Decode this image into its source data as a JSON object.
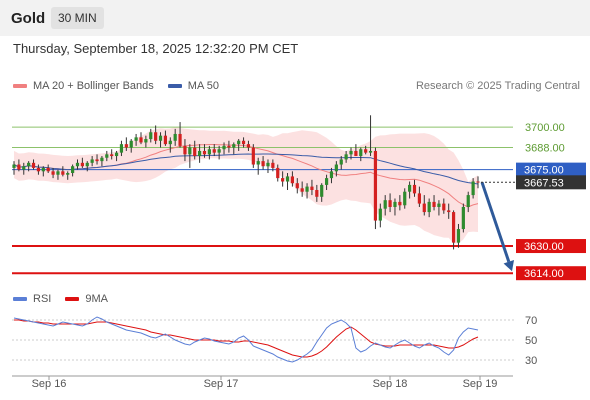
{
  "header": {
    "instrument": "Gold",
    "timeframe": "30 MIN",
    "datetime": "Thursday, September 18, 2025 12:32:20 PM CET"
  },
  "legend": {
    "items": [
      {
        "label": "MA 20 + Bollinger Bands",
        "color": "#f08080"
      },
      {
        "label": "MA 50",
        "color": "#3a5ca8"
      }
    ],
    "credit": "Research © 2025 Trading Central"
  },
  "rsi_legend": {
    "items": [
      {
        "label": "RSI",
        "color": "#5b7fd6"
      },
      {
        "label": "9MA",
        "color": "#dd1111"
      }
    ]
  },
  "chart_data": {
    "type": "candlestick",
    "price_range": [
      3610,
      3716
    ],
    "levels": [
      {
        "label": "3700.00",
        "value": 3700.0,
        "role": "resistance",
        "color": "#8cc26a",
        "text_color": "#5e9c33"
      },
      {
        "label": "3688.00",
        "value": 3688.0,
        "role": "resistance",
        "color": "#8cc26a",
        "text_color": "#5e9c33"
      },
      {
        "label": "3675.00",
        "value": 3675.0,
        "role": "pivot",
        "color": "#2f5fc4",
        "text_color": "#ffffff"
      },
      {
        "label": "3630.00",
        "value": 3630.0,
        "role": "support",
        "color": "#dd1111",
        "text_color": "#ffffff"
      },
      {
        "label": "3614.00",
        "value": 3614.0,
        "role": "support",
        "color": "#dd1111",
        "text_color": "#ffffff"
      }
    ],
    "last_price": {
      "label": "3667.53",
      "value": 3667.53
    },
    "forecast_arrow": {
      "from": 3667.53,
      "to": 3614.0
    },
    "x_labels": [
      "Sep 16",
      "Sep 17",
      "Sep 18",
      "Sep 19"
    ],
    "candles": [
      [
        3676,
        3680,
        3672,
        3678
      ],
      [
        3678,
        3681,
        3674,
        3675
      ],
      [
        3675,
        3679,
        3672,
        3677
      ],
      [
        3677,
        3680,
        3674,
        3679
      ],
      [
        3679,
        3681,
        3675,
        3676
      ],
      [
        3676,
        3678,
        3672,
        3674
      ],
      [
        3674,
        3677,
        3671,
        3676
      ],
      [
        3676,
        3678,
        3673,
        3674
      ],
      [
        3674,
        3676,
        3670,
        3672
      ],
      [
        3672,
        3675,
        3669,
        3674
      ],
      [
        3674,
        3677,
        3671,
        3672
      ],
      [
        3672,
        3674,
        3669,
        3673
      ],
      [
        3673,
        3678,
        3671,
        3677
      ],
      [
        3677,
        3681,
        3675,
        3679
      ],
      [
        3679,
        3682,
        3676,
        3677
      ],
      [
        3677,
        3680,
        3674,
        3679
      ],
      [
        3679,
        3683,
        3677,
        3681
      ],
      [
        3681,
        3684,
        3678,
        3680
      ],
      [
        3680,
        3683,
        3677,
        3682
      ],
      [
        3682,
        3686,
        3680,
        3684
      ],
      [
        3684,
        3687,
        3681,
        3683
      ],
      [
        3683,
        3686,
        3680,
        3685
      ],
      [
        3685,
        3692,
        3683,
        3690
      ],
      [
        3690,
        3694,
        3686,
        3688
      ],
      [
        3688,
        3693,
        3685,
        3692
      ],
      [
        3692,
        3696,
        3689,
        3694
      ],
      [
        3694,
        3697,
        3690,
        3691
      ],
      [
        3691,
        3695,
        3688,
        3693
      ],
      [
        3693,
        3699,
        3691,
        3697
      ],
      [
        3697,
        3701,
        3690,
        3692
      ],
      [
        3692,
        3697,
        3688,
        3695
      ],
      [
        3695,
        3698,
        3689,
        3690
      ],
      [
        3690,
        3694,
        3685,
        3692
      ],
      [
        3692,
        3699,
        3689,
        3696
      ],
      [
        3696,
        3703,
        3688,
        3689
      ],
      [
        3689,
        3693,
        3680,
        3684
      ],
      [
        3684,
        3690,
        3676,
        3688
      ],
      [
        3688,
        3692,
        3681,
        3683
      ],
      [
        3683,
        3690,
        3679,
        3686
      ],
      [
        3686,
        3690,
        3682,
        3684
      ],
      [
        3684,
        3689,
        3681,
        3687
      ],
      [
        3687,
        3690,
        3683,
        3685
      ],
      [
        3685,
        3689,
        3681,
        3687
      ],
      [
        3687,
        3691,
        3684,
        3689
      ],
      [
        3689,
        3692,
        3685,
        3688
      ],
      [
        3688,
        3691,
        3684,
        3690
      ],
      [
        3690,
        3693,
        3686,
        3692
      ],
      [
        3692,
        3694,
        3688,
        3690
      ],
      [
        3690,
        3692,
        3686,
        3688
      ],
      [
        3688,
        3690,
        3676,
        3678
      ],
      [
        3678,
        3682,
        3672,
        3680
      ],
      [
        3680,
        3683,
        3675,
        3677
      ],
      [
        3677,
        3681,
        3673,
        3679
      ],
      [
        3679,
        3681,
        3674,
        3676
      ],
      [
        3676,
        3678,
        3668,
        3670
      ],
      [
        3670,
        3674,
        3665,
        3668
      ],
      [
        3668,
        3673,
        3663,
        3671
      ],
      [
        3671,
        3674,
        3665,
        3667
      ],
      [
        3667,
        3670,
        3661,
        3664
      ],
      [
        3664,
        3668,
        3659,
        3662
      ],
      [
        3662,
        3667,
        3658,
        3665
      ],
      [
        3665,
        3669,
        3660,
        3663
      ],
      [
        3663,
        3666,
        3656,
        3659
      ],
      [
        3659,
        3667,
        3656,
        3666
      ],
      [
        3666,
        3672,
        3663,
        3670
      ],
      [
        3670,
        3676,
        3667,
        3674
      ],
      [
        3674,
        3680,
        3671,
        3678
      ],
      [
        3678,
        3683,
        3675,
        3681
      ],
      [
        3681,
        3686,
        3679,
        3684
      ],
      [
        3684,
        3688,
        3681,
        3686
      ],
      [
        3686,
        3690,
        3683,
        3683
      ],
      [
        3683,
        3688,
        3680,
        3687
      ],
      [
        3687,
        3689,
        3684,
        3685
      ],
      [
        3685,
        3707,
        3683,
        3686
      ],
      [
        3686,
        3688,
        3640,
        3645
      ],
      [
        3645,
        3655,
        3641,
        3652
      ],
      [
        3652,
        3660,
        3648,
        3657
      ],
      [
        3657,
        3661,
        3650,
        3653
      ],
      [
        3653,
        3658,
        3648,
        3656
      ],
      [
        3656,
        3660,
        3651,
        3654
      ],
      [
        3654,
        3664,
        3652,
        3662
      ],
      [
        3662,
        3668,
        3658,
        3666
      ],
      [
        3666,
        3669,
        3659,
        3661
      ],
      [
        3661,
        3665,
        3653,
        3655
      ],
      [
        3655,
        3660,
        3648,
        3650
      ],
      [
        3650,
        3658,
        3647,
        3656
      ],
      [
        3656,
        3660,
        3651,
        3653
      ],
      [
        3653,
        3657,
        3648,
        3655
      ],
      [
        3655,
        3658,
        3649,
        3651
      ],
      [
        3651,
        3655,
        3646,
        3650
      ],
      [
        3650,
        3651,
        3628,
        3632
      ],
      [
        3632,
        3643,
        3629,
        3640
      ],
      [
        3640,
        3655,
        3638,
        3653
      ],
      [
        3653,
        3662,
        3650,
        3660
      ],
      [
        3660,
        3670,
        3658,
        3668
      ],
      [
        3668,
        3671,
        3664,
        3667.53
      ]
    ],
    "rsi": {
      "range": [
        20,
        80
      ],
      "ticks": [
        30,
        50,
        70
      ],
      "rsi_values": [
        72,
        71,
        70,
        69,
        68,
        67,
        66,
        65,
        64,
        66,
        68,
        67,
        66,
        65,
        64,
        66,
        70,
        73,
        71,
        68,
        66,
        64,
        62,
        60,
        59,
        58,
        57,
        55,
        53,
        52,
        54,
        56,
        53,
        50,
        48,
        46,
        45,
        48,
        50,
        52,
        51,
        49,
        48,
        47,
        46,
        48,
        52,
        54,
        50,
        44,
        42,
        40,
        38,
        36,
        33,
        31,
        29,
        28,
        30,
        33,
        36,
        40,
        48,
        55,
        62,
        66,
        68,
        70,
        67,
        62,
        42,
        38,
        40,
        44,
        47,
        45,
        43,
        42,
        45,
        48,
        50,
        47,
        44,
        42,
        45,
        47,
        44,
        42,
        38,
        35,
        40,
        52,
        58,
        62,
        61,
        60
      ],
      "ma_values": [
        70,
        70,
        69,
        69,
        68,
        68,
        67,
        67,
        66,
        66,
        66,
        66,
        66,
        66,
        66,
        66,
        67,
        68,
        68,
        68,
        67,
        66,
        65,
        64,
        63,
        62,
        61,
        60,
        58,
        57,
        56,
        55,
        55,
        54,
        53,
        52,
        51,
        50,
        50,
        50,
        50,
        50,
        49,
        49,
        49,
        48,
        48,
        49,
        49,
        48,
        47,
        46,
        45,
        43,
        41,
        39,
        37,
        35,
        34,
        33,
        33,
        34,
        36,
        39,
        43,
        48,
        53,
        57,
        61,
        63,
        60,
        56,
        52,
        48,
        46,
        45,
        44,
        44,
        44,
        45,
        45,
        45,
        45,
        45,
        45,
        45,
        45,
        44,
        43,
        42,
        42,
        43,
        45,
        48,
        51,
        53
      ]
    }
  }
}
